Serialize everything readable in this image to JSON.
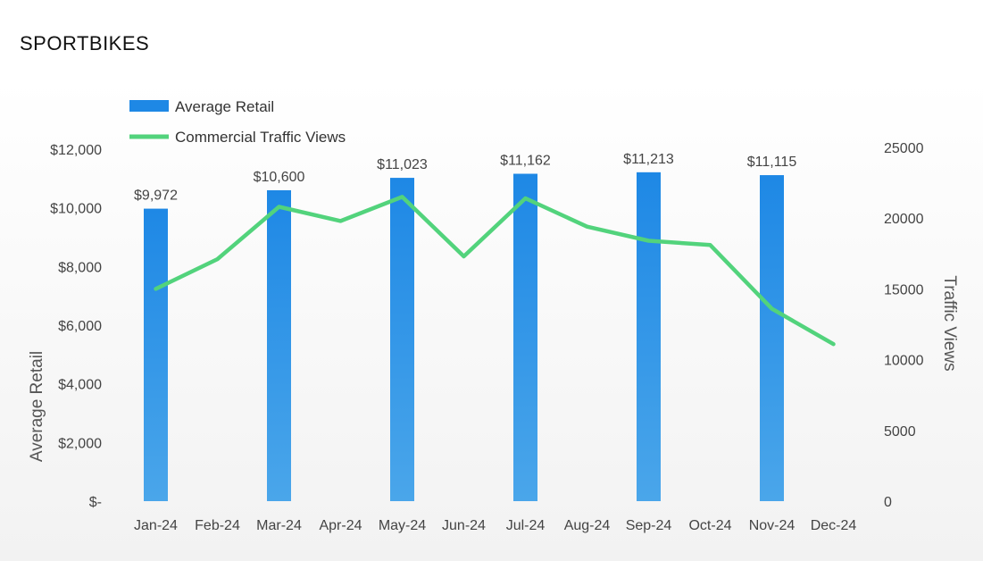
{
  "page": {
    "title": "SPORTBIKES"
  },
  "chart_data": {
    "type": "bar",
    "categories": [
      "Jan-24",
      "Feb-24",
      "Mar-24",
      "Apr-24",
      "May-24",
      "Jun-24",
      "Jul-24",
      "Aug-24",
      "Sep-24",
      "Oct-24",
      "Nov-24",
      "Dec-24"
    ],
    "series": [
      {
        "name": "Average Retail",
        "type": "bar",
        "axis": "left",
        "color": "#1e88e5",
        "values": [
          9972,
          null,
          10600,
          null,
          11023,
          null,
          11162,
          null,
          11213,
          null,
          11115,
          null
        ],
        "data_labels": [
          "$9,972",
          "",
          "$10,600",
          "",
          "$11,023",
          "",
          "$11,162",
          "",
          "$11,213",
          "",
          "$11,115",
          ""
        ]
      },
      {
        "name": "Commercial Traffic Views",
        "type": "line",
        "axis": "right",
        "color": "#52d37c",
        "values": [
          15000,
          17100,
          20800,
          19800,
          21500,
          17300,
          21400,
          19400,
          18400,
          18100,
          13600,
          11100
        ]
      }
    ],
    "ylabel": "Average Retail",
    "ylabel_right": "Traffic Views",
    "ylim": [
      0,
      12000
    ],
    "ylim_right": [
      0,
      25000
    ],
    "yticks": [
      "$-",
      "$2,000",
      "$4,000",
      "$6,000",
      "$8,000",
      "$10,000",
      "$12,000"
    ],
    "yticks_right": [
      "0",
      "5000",
      "10000",
      "15000",
      "20000",
      "25000"
    ],
    "grid": false,
    "legend_position": "top-left"
  }
}
